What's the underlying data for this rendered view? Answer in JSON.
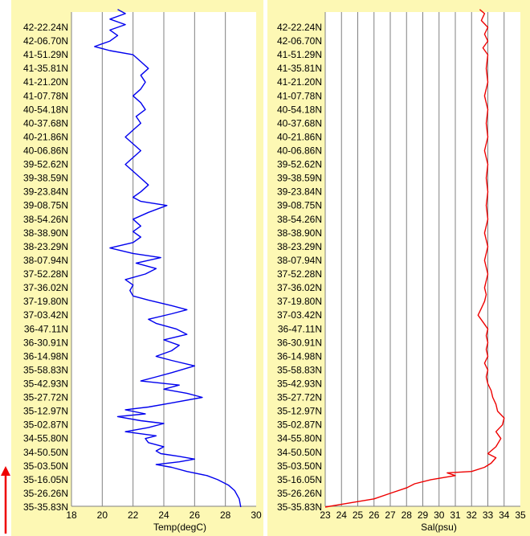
{
  "colors": {
    "panel_bg": "#fdf8b4",
    "plot_bg": "#ffffff",
    "grid": "#808080",
    "temp_line": "#0000ee",
    "sal_line": "#ee0000",
    "arrow": "#ee0000"
  },
  "arrow_icon": "up-arrow-icon",
  "chart_data": [
    {
      "type": "line",
      "xlabel": "Temp(degC)",
      "ylabel": "",
      "xlim": [
        18,
        30
      ],
      "x_ticks": [
        "18",
        "20",
        "22",
        "24",
        "26",
        "28",
        "30"
      ],
      "y_tick_labels": [
        "42-22.24N",
        "42-06.70N",
        "41-51.29N",
        "41-35.81N",
        "41-21.20N",
        "41-07.78N",
        "40-54.18N",
        "40-37.68N",
        "40-21.86N",
        "40-06.86N",
        "39-52.62N",
        "39-38.59N",
        "39-23.84N",
        "39-08.75N",
        "38-54.26N",
        "38-38.90N",
        "38-23.29N",
        "38-07.94N",
        "37-52.28N",
        "37-36.02N",
        "37-19.80N",
        "37-03.42N",
        "36-47.11N",
        "36-30.91N",
        "36-14.98N",
        "35-58.83N",
        "35-42.93N",
        "35-27.72N",
        "35-12.97N",
        "35-02.87N",
        "34-55.80N",
        "34-50.50N",
        "35-03.50N",
        "35-16.05N",
        "35-26.26N",
        "35-35.83N"
      ],
      "grid": "vertical",
      "series": [
        {
          "color": "#0000ee",
          "points": [
            [
              29.0,
              0
            ],
            [
              28.9,
              0.6
            ],
            [
              28.6,
              1.2
            ],
            [
              28.2,
              1.6
            ],
            [
              27.5,
              2.0
            ],
            [
              26.8,
              2.3
            ],
            [
              25.5,
              2.6
            ],
            [
              24.5,
              2.9
            ],
            [
              23.5,
              3.1
            ],
            [
              25.0,
              3.3
            ],
            [
              26.0,
              3.5
            ],
            [
              25.0,
              3.7
            ],
            [
              23.8,
              3.9
            ],
            [
              23.5,
              4.1
            ],
            [
              24.0,
              4.4
            ],
            [
              23.0,
              4.7
            ],
            [
              22.8,
              5.0
            ],
            [
              23.5,
              5.2
            ],
            [
              21.5,
              5.5
            ],
            [
              23.0,
              5.8
            ],
            [
              24.0,
              6.1
            ],
            [
              22.5,
              6.3
            ],
            [
              21.0,
              6.6
            ],
            [
              22.8,
              6.8
            ],
            [
              21.5,
              7.1
            ],
            [
              23.0,
              7.3
            ],
            [
              24.5,
              7.6
            ],
            [
              26.5,
              8.0
            ],
            [
              25.5,
              8.3
            ],
            [
              24.0,
              8.6
            ],
            [
              25.0,
              8.9
            ],
            [
              22.5,
              9.2
            ],
            [
              23.5,
              9.5
            ],
            [
              24.5,
              9.8
            ],
            [
              26.0,
              10.3
            ],
            [
              24.5,
              10.7
            ],
            [
              23.5,
              11.0
            ],
            [
              24.5,
              11.4
            ],
            [
              25.0,
              11.8
            ],
            [
              24.0,
              12.2
            ],
            [
              25.5,
              12.6
            ],
            [
              24.8,
              13.0
            ],
            [
              23.5,
              13.4
            ],
            [
              23.0,
              13.7
            ],
            [
              24.5,
              14.1
            ],
            [
              25.5,
              14.4
            ],
            [
              24.5,
              14.7
            ],
            [
              23.0,
              15.1
            ],
            [
              22.0,
              15.4
            ],
            [
              21.8,
              15.8
            ],
            [
              22.0,
              16.2
            ],
            [
              21.5,
              16.6
            ],
            [
              22.8,
              17.0
            ],
            [
              23.5,
              17.4
            ],
            [
              22.2,
              17.8
            ],
            [
              23.8,
              18.2
            ],
            [
              22.0,
              18.5
            ],
            [
              20.5,
              18.9
            ],
            [
              22.0,
              19.3
            ],
            [
              22.5,
              19.7
            ],
            [
              22.0,
              20.1
            ],
            [
              22.5,
              20.5
            ],
            [
              22.0,
              21.0
            ],
            [
              23.0,
              21.5
            ],
            [
              24.2,
              22.0
            ],
            [
              22.5,
              22.3
            ],
            [
              22.0,
              22.6
            ],
            [
              22.5,
              23.0
            ],
            [
              23.0,
              23.5
            ],
            [
              22.5,
              24.0
            ],
            [
              22.0,
              24.5
            ],
            [
              21.5,
              25.0
            ],
            [
              22.0,
              25.5
            ],
            [
              22.5,
              26.0
            ],
            [
              22.0,
              26.5
            ],
            [
              21.5,
              27.0
            ],
            [
              22.0,
              27.5
            ],
            [
              22.5,
              28.0
            ],
            [
              22.2,
              28.5
            ],
            [
              22.8,
              29.0
            ],
            [
              22.5,
              29.5
            ],
            [
              22.0,
              30.0
            ],
            [
              22.5,
              30.5
            ],
            [
              22.8,
              31.0
            ],
            [
              22.5,
              31.5
            ],
            [
              23.0,
              32.0
            ],
            [
              22.5,
              32.5
            ],
            [
              22.0,
              33.0
            ],
            [
              20.5,
              33.3
            ],
            [
              19.5,
              33.6
            ],
            [
              20.5,
              34.0
            ],
            [
              21.0,
              34.4
            ],
            [
              20.5,
              34.8
            ],
            [
              21.5,
              35.2
            ],
            [
              20.5,
              35.6
            ],
            [
              21.5,
              36.0
            ],
            [
              21.0,
              36.3
            ]
          ]
        }
      ]
    },
    {
      "type": "line",
      "xlabel": "Sal(psu)",
      "ylabel": "",
      "xlim": [
        23,
        35
      ],
      "x_ticks": [
        "23",
        "24",
        "25",
        "26",
        "27",
        "28",
        "29",
        "30",
        "31",
        "32",
        "33",
        "34",
        "35"
      ],
      "y_tick_labels": [
        "42-22.24N",
        "42-06.70N",
        "41-51.29N",
        "41-35.81N",
        "41-21.20N",
        "41-07.78N",
        "40-54.18N",
        "40-37.68N",
        "40-21.86N",
        "40-06.86N",
        "39-52.62N",
        "39-38.59N",
        "39-23.84N",
        "39-08.75N",
        "38-54.26N",
        "38-38.90N",
        "38-23.29N",
        "38-07.94N",
        "37-52.28N",
        "37-36.02N",
        "37-19.80N",
        "37-03.42N",
        "36-47.11N",
        "36-30.91N",
        "36-14.98N",
        "35-58.83N",
        "35-42.93N",
        "35-27.72N",
        "35-12.97N",
        "35-02.87N",
        "34-55.80N",
        "34-50.50N",
        "35-03.50N",
        "35-16.05N",
        "35-26.26N",
        "35-35.83N"
      ],
      "grid": "vertical",
      "series": [
        {
          "color": "#ee0000",
          "points": [
            [
              23.0,
              0
            ],
            [
              24.0,
              0.2
            ],
            [
              25.0,
              0.4
            ],
            [
              26.0,
              0.6
            ],
            [
              27.0,
              1.0
            ],
            [
              28.0,
              1.4
            ],
            [
              28.5,
              1.7
            ],
            [
              29.5,
              2.0
            ],
            [
              31.0,
              2.3
            ],
            [
              30.5,
              2.5
            ],
            [
              32.0,
              2.6
            ],
            [
              32.8,
              2.9
            ],
            [
              33.2,
              3.2
            ],
            [
              33.5,
              3.6
            ],
            [
              33.0,
              3.9
            ],
            [
              33.5,
              4.4
            ],
            [
              33.8,
              5.0
            ],
            [
              33.5,
              5.5
            ],
            [
              33.9,
              6.0
            ],
            [
              34.0,
              6.5
            ],
            [
              33.6,
              7.0
            ],
            [
              33.5,
              7.5
            ],
            [
              33.3,
              8.0
            ],
            [
              33.2,
              8.5
            ],
            [
              33.0,
              9.0
            ],
            [
              32.9,
              9.5
            ],
            [
              33.0,
              10.0
            ],
            [
              32.8,
              10.5
            ],
            [
              33.0,
              11.0
            ],
            [
              32.9,
              11.5
            ],
            [
              33.0,
              12.0
            ],
            [
              32.9,
              12.5
            ],
            [
              33.0,
              13.0
            ],
            [
              32.7,
              13.5
            ],
            [
              32.4,
              14.0
            ],
            [
              32.6,
              14.5
            ],
            [
              32.8,
              15.0
            ],
            [
              32.9,
              15.5
            ],
            [
              32.8,
              16.0
            ],
            [
              33.0,
              17.0
            ],
            [
              32.8,
              18.0
            ],
            [
              33.0,
              19.0
            ],
            [
              32.8,
              20.0
            ],
            [
              33.0,
              21.0
            ],
            [
              32.9,
              22.0
            ],
            [
              33.0,
              23.0
            ],
            [
              32.9,
              24.0
            ],
            [
              33.0,
              25.0
            ],
            [
              32.8,
              26.0
            ],
            [
              33.0,
              27.0
            ],
            [
              32.9,
              28.0
            ],
            [
              33.0,
              29.0
            ],
            [
              32.8,
              30.0
            ],
            [
              33.0,
              31.0
            ],
            [
              32.9,
              32.0
            ],
            [
              33.0,
              33.0
            ],
            [
              32.7,
              33.5
            ],
            [
              33.0,
              34.0
            ],
            [
              32.8,
              34.5
            ],
            [
              33.0,
              35.0
            ],
            [
              32.6,
              35.5
            ],
            [
              32.8,
              36.0
            ],
            [
              32.5,
              36.3
            ]
          ]
        }
      ]
    }
  ]
}
